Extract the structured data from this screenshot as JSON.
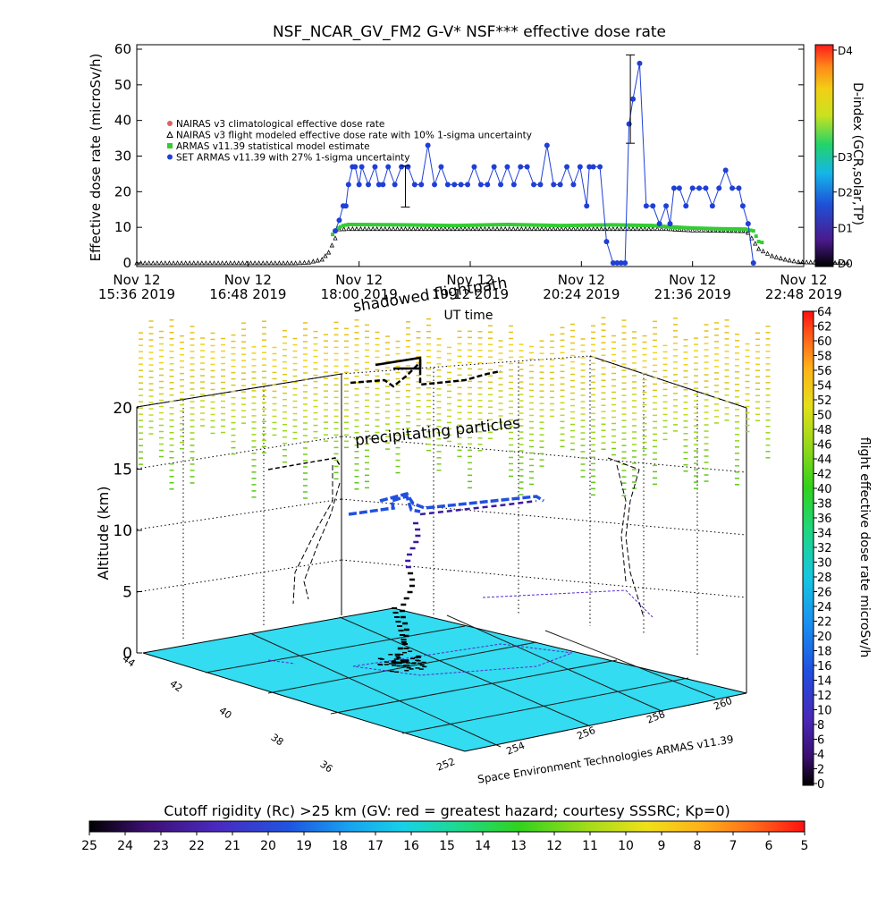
{
  "chart_data": [
    {
      "type": "line",
      "title": "NSF_NCAR_GV_FM2 G-V* NSF*** effective dose rate",
      "ylabel": "Effective dose rate  (microSv/h)",
      "xlabel": "UT time",
      "ylim": [
        0,
        60
      ],
      "yticks": [
        "0",
        "10",
        "20",
        "30",
        "40",
        "50",
        "60"
      ],
      "xticks": [
        {
          "l1": "Nov 12",
          "l2": "15:36 2019"
        },
        {
          "l1": "Nov 12",
          "l2": "16:48 2019"
        },
        {
          "l1": "Nov 12",
          "l2": "18:00 2019"
        },
        {
          "l1": "Nov 12",
          "l2": "19:12 2019"
        },
        {
          "l1": "Nov 12",
          "l2": "20:24 2019"
        },
        {
          "l1": "Nov 12",
          "l2": "21:36 2019"
        },
        {
          "l1": "Nov 12",
          "l2": "22:48 2019"
        }
      ],
      "x_unit": "minutes after 15:36 UT",
      "legend": [
        {
          "label": "NAIRAS v3 climatological effective dose rate",
          "color": "#e06060",
          "marker": "o"
        },
        {
          "label": "NAIRAS v3 flight modeled effective dose rate with 10% 1-sigma uncertainty",
          "color": "#000000",
          "marker": "^"
        },
        {
          "label": "ARMAS v11.39 statistical model estimate",
          "color": "#33cc33",
          "marker": "s"
        },
        {
          "label": "SET ARMAS v11.39 with 27% 1-sigma uncertainty",
          "color": "#1f3fd6",
          "marker": "o"
        }
      ],
      "legend_position": "upper-left",
      "series": [
        {
          "name": "NAIRAS v3 flight modeled effective dose rate with 10% 1-sigma uncertainty",
          "x": [
            0,
            40,
            80,
            120,
            130,
            140,
            145,
            150,
            153,
            160,
            200,
            260,
            300,
            330,
            360,
            390,
            400,
            410,
            420,
            430,
            460,
            462,
            470,
            480,
            490,
            500,
            540
          ],
          "y": [
            0,
            0,
            0,
            0,
            0.2,
            1,
            3,
            7,
            9.5,
            9.6,
            9.6,
            9.6,
            9.6,
            9.6,
            9.6,
            9.6,
            9.6,
            9.4,
            9.2,
            9.2,
            9,
            8.5,
            4,
            2,
            1,
            0.3,
            0
          ]
        },
        {
          "name": "ARMAS v11.39 statistical model estimate",
          "x": [
            148,
            152,
            156,
            160,
            200,
            240,
            280,
            320,
            360,
            390,
            400,
            410,
            420,
            440,
            460,
            466,
            470,
            475
          ],
          "y": [
            8,
            9.8,
            10.5,
            10.8,
            10.7,
            10.5,
            10.8,
            10.5,
            10.7,
            10.5,
            10.2,
            10,
            9.8,
            9.6,
            9.5,
            9,
            6,
            5.5
          ]
        },
        {
          "name": "SET ARMAS v11.39 with 27% 1-sigma uncertainty",
          "x": [
            150,
            153,
            156,
            158,
            160,
            163,
            165,
            168,
            170,
            175,
            180,
            183,
            186,
            190,
            195,
            200,
            205,
            210,
            215,
            220,
            225,
            230,
            235,
            240,
            245,
            250,
            255,
            260,
            265,
            270,
            275,
            280,
            285,
            290,
            295,
            300,
            305,
            310,
            315,
            320,
            325,
            330,
            335,
            340,
            342,
            345,
            350,
            355,
            360,
            363,
            366,
            369,
            372,
            375,
            380,
            385,
            390,
            395,
            400,
            403,
            406,
            410,
            415,
            420,
            425,
            430,
            435,
            440,
            445,
            450,
            455,
            458,
            462,
            466
          ],
          "y": [
            9,
            12,
            16,
            16,
            22,
            27,
            27,
            22,
            27,
            22,
            27,
            22,
            22,
            27,
            22,
            27,
            27,
            22,
            22,
            33,
            22,
            27,
            22,
            22,
            22,
            22,
            27,
            22,
            22,
            27,
            22,
            27,
            22,
            27,
            27,
            22,
            22,
            33,
            22,
            22,
            27,
            22,
            27,
            16,
            27,
            27,
            27,
            6,
            0,
            0,
            0,
            0,
            39,
            46,
            56,
            16,
            16,
            11,
            16,
            11,
            21,
            21,
            16,
            21,
            21,
            21,
            16,
            21,
            26,
            21,
            21,
            16,
            11,
            0
          ]
        }
      ],
      "errorbars": [
        {
          "x": 203,
          "y": 21.5,
          "err": 5.8
        },
        {
          "x": 373,
          "y": 46,
          "err": 12.4
        }
      ],
      "right_colorbar": {
        "label": "D-index (GCR,solar,TP)",
        "ticks": [
          "D0",
          "D1",
          "D2",
          "D3",
          "D4"
        ],
        "tick_values": [
          0,
          1,
          2,
          3,
          6
        ]
      }
    },
    {
      "type": "scatter",
      "title": "",
      "zlabel": "Altitude (km)",
      "zticks": [
        "0",
        "5",
        "10",
        "15",
        "20"
      ],
      "lat_ticks": [
        "44",
        "42",
        "40",
        "38",
        "36"
      ],
      "lon_ticks": [
        "252",
        "254",
        "256",
        "258",
        "260"
      ],
      "annotations": [
        "shadowed flightpath",
        "precipitating particles"
      ],
      "credit": "Space Environment Technologies ARMAS v11.39",
      "right_colorbar": {
        "label": "flight effective dose rate microSv/h",
        "ticks": [
          "0",
          "2",
          "4",
          "6",
          "8",
          "10",
          "12",
          "14",
          "16",
          "18",
          "20",
          "22",
          "24",
          "26",
          "28",
          "30",
          "32",
          "34",
          "36",
          "38",
          "40",
          "42",
          "44",
          "46",
          "48",
          "50",
          "52",
          "54",
          "56",
          "58",
          "60",
          "62",
          "64"
        ]
      },
      "bottom_colorbar": {
        "label": "Cutoff rigidity (Rc) >25 km (GV: red = greatest hazard; courtesy SSSRC; Kp=0)",
        "ticks": [
          "25",
          "24",
          "23",
          "22",
          "21",
          "20",
          "19",
          "18",
          "17",
          "16",
          "15",
          "14",
          "13",
          "12",
          "11",
          "10",
          "9",
          "8",
          "7",
          "6",
          "5"
        ]
      },
      "surface_color": "#33dcf0"
    }
  ],
  "colors": {
    "armas": "#1f3fd6",
    "model": "#33cc33",
    "nairas": "#000000",
    "climo": "#e06060"
  }
}
